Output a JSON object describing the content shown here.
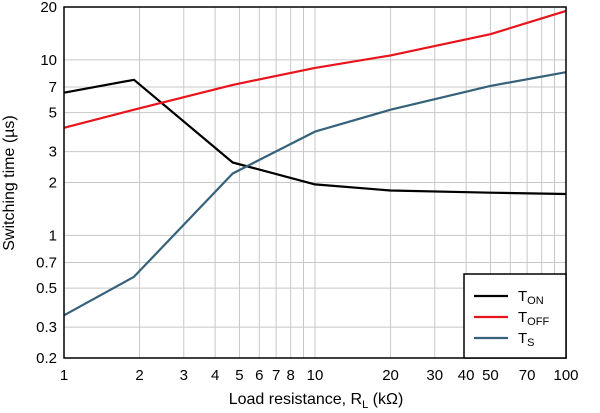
{
  "chart_data": {
    "type": "line",
    "xlabel": {
      "main": "Load resistance, R",
      "sub": "L",
      "unit": " (kΩ)"
    },
    "ylabel": "Switching time (µs)",
    "xscale": "log",
    "yscale": "log",
    "xlim": [
      1,
      100
    ],
    "ylim": [
      0.2,
      20
    ],
    "xticks": [
      {
        "value": 1,
        "label": "1"
      },
      {
        "value": 2,
        "label": "2"
      },
      {
        "value": 3,
        "label": "3"
      },
      {
        "value": 4,
        "label": "4"
      },
      {
        "value": 5,
        "label": "5"
      },
      {
        "value": 6,
        "label": "6"
      },
      {
        "value": 7,
        "label": "7"
      },
      {
        "value": 8,
        "label": "8"
      },
      {
        "value": 10,
        "label": "10"
      },
      {
        "value": 20,
        "label": "20"
      },
      {
        "value": 30,
        "label": "30"
      },
      {
        "value": 40,
        "label": "40"
      },
      {
        "value": 50,
        "label": "50"
      },
      {
        "value": 70,
        "label": "70"
      },
      {
        "value": 100,
        "label": "100"
      }
    ],
    "xgrid": [
      1,
      2,
      3,
      4,
      5,
      6,
      7,
      8,
      9,
      10,
      20,
      30,
      40,
      50,
      60,
      70,
      80,
      90,
      100
    ],
    "yticks": [
      {
        "value": 0.2,
        "label": "0.2"
      },
      {
        "value": 0.3,
        "label": "0.3"
      },
      {
        "value": 0.5,
        "label": "0.5"
      },
      {
        "value": 0.7,
        "label": "0.7"
      },
      {
        "value": 1,
        "label": "1"
      },
      {
        "value": 2,
        "label": "2"
      },
      {
        "value": 3,
        "label": "3"
      },
      {
        "value": 5,
        "label": "5"
      },
      {
        "value": 7,
        "label": "7"
      },
      {
        "value": 10,
        "label": "10"
      },
      {
        "value": 20,
        "label": "20"
      }
    ],
    "grid": true,
    "legend_position": "bottom-right",
    "series": [
      {
        "name": "T",
        "sub": "ON",
        "color": "#000000",
        "x": [
          1,
          1.9,
          4.7,
          10,
          20,
          50,
          100
        ],
        "y": [
          6.5,
          7.7,
          2.6,
          1.95,
          1.8,
          1.75,
          1.72
        ]
      },
      {
        "name": "T",
        "sub": "OFF",
        "color": "#e8141b",
        "x": [
          1,
          1.9,
          4.7,
          10,
          20,
          50,
          100
        ],
        "y": [
          4.1,
          5.2,
          7.2,
          9.0,
          10.6,
          14.0,
          19.0
        ]
      },
      {
        "name": "T",
        "sub": "S",
        "color": "#36617a",
        "x": [
          1,
          1.9,
          4.7,
          10,
          20,
          50,
          100
        ],
        "y": [
          0.35,
          0.58,
          2.25,
          3.9,
          5.2,
          7.1,
          8.5
        ]
      }
    ]
  }
}
